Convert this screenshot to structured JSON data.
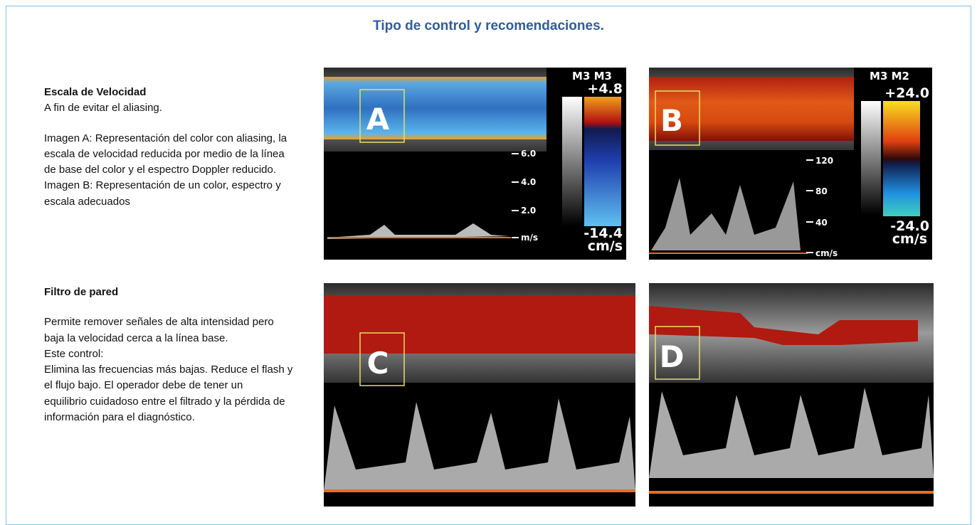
{
  "title": "Tipo de control y recomendaciones.",
  "sections": [
    {
      "heading": "Escala de Velocidad",
      "paragraphs": [
        [
          "A fin de evitar el aliasing."
        ],
        [
          "Imagen A: Representación del color con aliasing, la",
          "escala de velocidad reducida por medio de la línea",
          "de base del color   y el espectro Doppler reducido.",
          "Imagen B: Representación de un color, espectro y",
          "escala adecuados"
        ]
      ]
    },
    {
      "heading": "Filtro de pared",
      "paragraphs": [
        [
          "Permite remover señales de alta intensidad pero",
          "baja la velocidad cerca a la línea base.",
          "Este control:",
          "Elimina las frecuencias más bajas. Reduce el flash y",
          "el flujo bajo. El operador debe de tener un",
          "equilibrio cuidadoso entre el filtrado y la pérdida de",
          "información para el  diagnóstico."
        ]
      ]
    }
  ],
  "images": [
    {
      "label": "A",
      "scale_header": "M3  M3",
      "scale_max": "+4.8",
      "scale_min": "-14.4",
      "scale_unit": "cm/s",
      "axis_labels": [
        "6.0",
        "4.0",
        "2.0"
      ],
      "axis_unit": "m/s"
    },
    {
      "label": "B",
      "scale_header": "M3 M2",
      "scale_max": "+24.0",
      "scale_min": "-24.0",
      "scale_unit": "cm/s",
      "axis_labels": [
        "120",
        "80",
        "40"
      ],
      "axis_unit": "cm/s"
    },
    {
      "label": "C"
    },
    {
      "label": "D"
    }
  ]
}
